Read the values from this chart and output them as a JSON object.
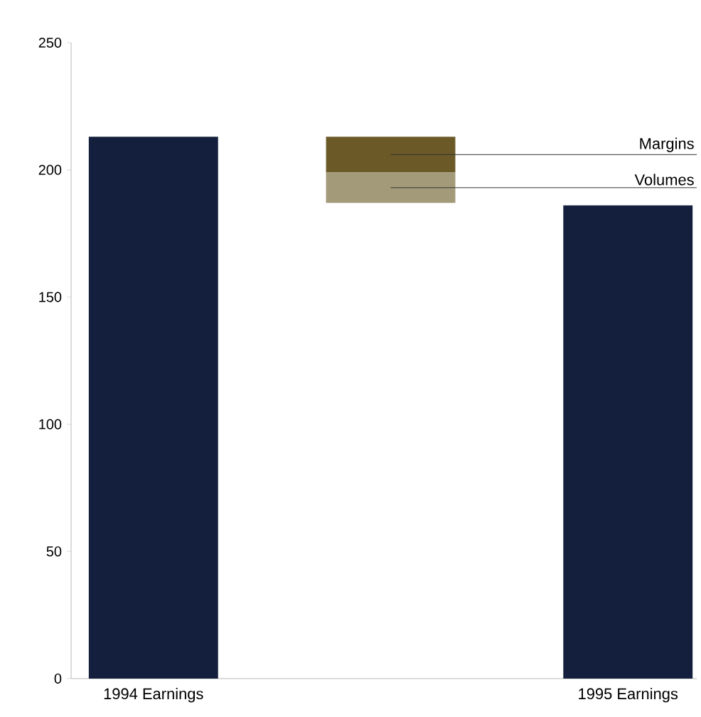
{
  "chart_data": {
    "type": "bar",
    "categories": [
      "1994 Earnings",
      null,
      "1995 Earnings"
    ],
    "ylim": [
      0,
      250
    ],
    "yticks": [
      0,
      50,
      100,
      150,
      200,
      250
    ],
    "legend": false,
    "series": [
      {
        "color": "#141f3d",
        "values": [
          213,
          null,
          186
        ]
      },
      {
        "name": "Margins",
        "color": "#6b5a28",
        "values": [
          null,
          14,
          null
        ],
        "base": [
          null,
          199,
          null
        ]
      },
      {
        "name": "Volumes",
        "color": "#a39a7a",
        "values": [
          null,
          12,
          null
        ],
        "base": [
          null,
          187,
          null
        ]
      }
    ]
  }
}
